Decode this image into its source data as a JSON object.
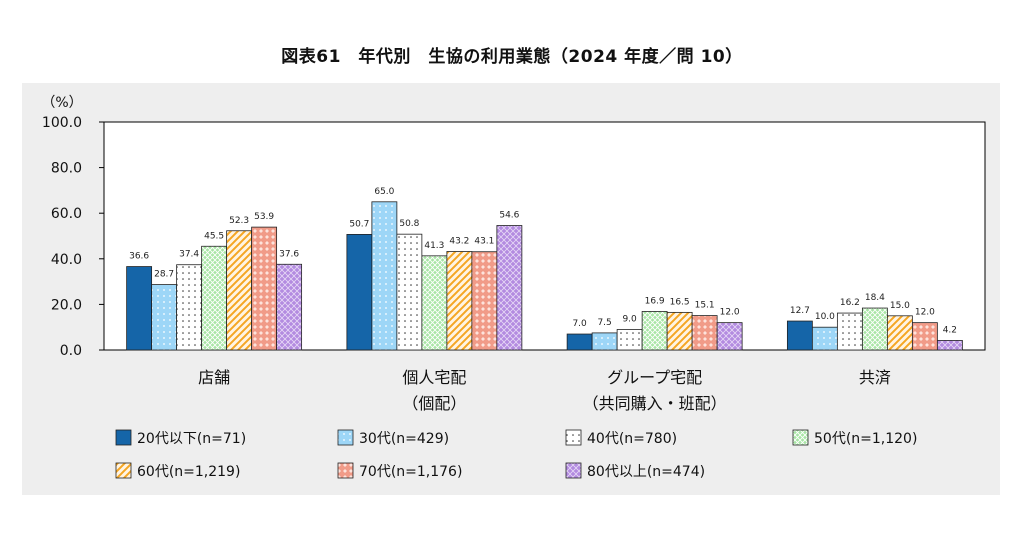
{
  "chart_data": {
    "type": "bar",
    "title": "図表61　年代別　生協の利用業態（2024 年度／問 10）",
    "ylabel": "（%）",
    "ylim": [
      0,
      100
    ],
    "yticks": [
      "100.0",
      "80.0",
      "60.0",
      "40.0",
      "20.0",
      "0.0"
    ],
    "categories": [
      {
        "line1": "店舗",
        "line2": ""
      },
      {
        "line1": "個人宅配",
        "line2": "（個配）"
      },
      {
        "line1": "グループ宅配",
        "line2": "（共同購入・班配）"
      },
      {
        "line1": "共済",
        "line2": ""
      }
    ],
    "series": [
      {
        "name": "20代以下(n=71)",
        "values": [
          36.6,
          50.7,
          7.0,
          12.7
        ],
        "color": "#1565a8",
        "pattern": "solid"
      },
      {
        "name": "30代(n=429)",
        "values": [
          28.7,
          65.0,
          7.5,
          10.0
        ],
        "color": "#9dd6f7",
        "pattern": "dots-white"
      },
      {
        "name": "40代(n=780)",
        "values": [
          37.4,
          50.8,
          9.0,
          16.2
        ],
        "color": "#ffffff",
        "pattern": "dots-dark"
      },
      {
        "name": "50代(n=1,120)",
        "values": [
          45.5,
          41.3,
          16.9,
          18.4
        ],
        "color": "#a8e6a5",
        "pattern": "grid"
      },
      {
        "name": "60代(n=1,219)",
        "values": [
          52.3,
          43.2,
          16.5,
          15.0
        ],
        "color": "#fddcad",
        "pattern": "diagonal"
      },
      {
        "name": "70代(n=1,176)",
        "values": [
          53.9,
          43.1,
          15.1,
          12.0
        ],
        "color": "#f19b88",
        "pattern": "diamonds"
      },
      {
        "name": "80代以上(n=474)",
        "values": [
          37.6,
          54.6,
          12.0,
          4.2
        ],
        "color": "#b38be0",
        "pattern": "check"
      }
    ],
    "value_labels": [
      [
        "36.6",
        "50.7",
        "7.0",
        "12.7"
      ],
      [
        "28.7",
        "65.0",
        "7.5",
        "10.0"
      ],
      [
        "37.4",
        "50.8",
        "9.0",
        "16.2"
      ],
      [
        "45.5",
        "41.3",
        "16.9",
        "18.4"
      ],
      [
        "52.3",
        "43.2",
        "16.5",
        "15.0"
      ],
      [
        "53.9",
        "43.1",
        "15.1",
        "12.0"
      ],
      [
        "37.6",
        "54.6",
        "12.0",
        "4.2"
      ]
    ],
    "grid": false,
    "legend_position": "bottom"
  }
}
